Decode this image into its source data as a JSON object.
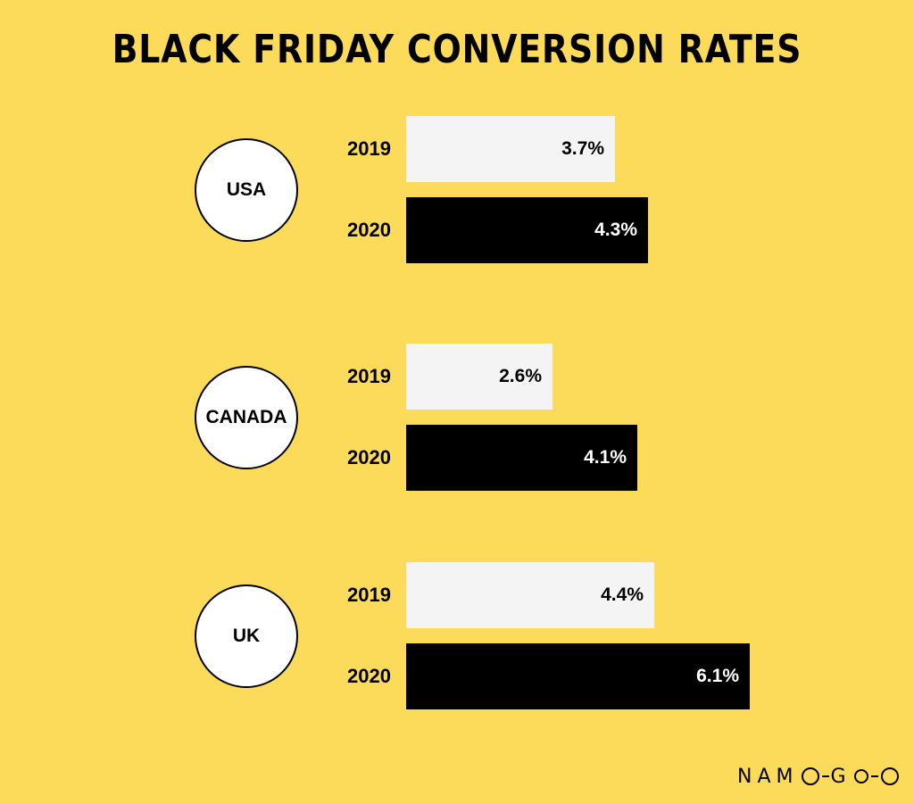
{
  "chart_data": {
    "type": "bar",
    "orientation": "horizontal",
    "title": "BLACK FRIDAY CONVERSION RATES",
    "categories": [
      "USA",
      "CANADA",
      "UK"
    ],
    "series": [
      {
        "name": "2019",
        "values": [
          3.7,
          2.6,
          4.4
        ],
        "labels": [
          "3.7%",
          "2.6%",
          "4.4%"
        ],
        "color": "#F4F4F4"
      },
      {
        "name": "2020",
        "values": [
          4.3,
          4.1,
          6.1
        ],
        "labels": [
          "4.3%",
          "4.1%",
          "6.1%"
        ],
        "color": "#000000"
      }
    ],
    "xlim": [
      0,
      6.1
    ],
    "grid": false,
    "background": "#FDDB5A"
  },
  "logo": {
    "text": "NAMOGOO"
  }
}
